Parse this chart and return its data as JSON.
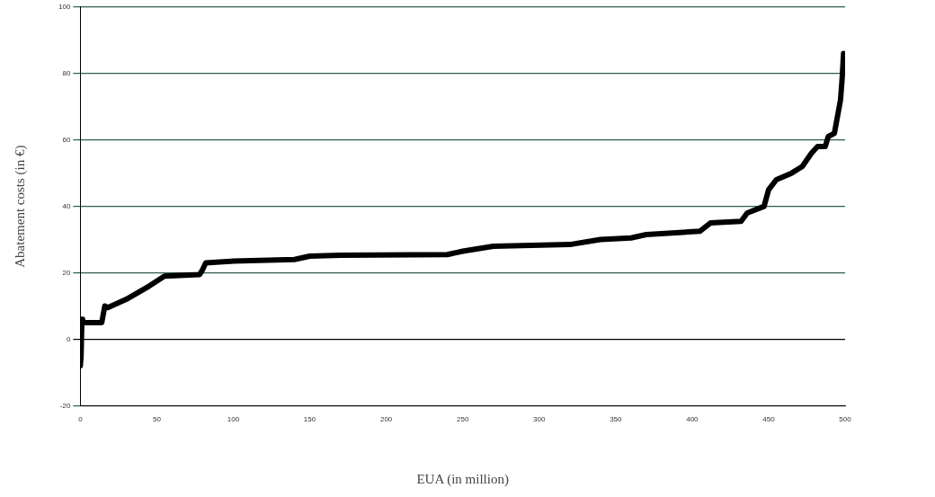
{
  "chart_data": {
    "type": "line",
    "xlabel": "EUA (in million)",
    "ylabel": "Abatement costs (in €)",
    "x": [
      0,
      0.5,
      1,
      1.5,
      14,
      16,
      18,
      30,
      45,
      55,
      78,
      80,
      82,
      100,
      140,
      150,
      170,
      240,
      250,
      270,
      320,
      340,
      360,
      370,
      405,
      412,
      432,
      436,
      447,
      450,
      455,
      465,
      472,
      478,
      482,
      487,
      489,
      493,
      495,
      497,
      498,
      499
    ],
    "series": [
      {
        "color": "#000000",
        "values": [
          -8,
          -5,
          6,
          5,
          5,
          10,
          9.5,
          12,
          16,
          19,
          19.5,
          21,
          23,
          23.5,
          24,
          25,
          25.3,
          25.5,
          26.5,
          28,
          28.5,
          30,
          30.5,
          31.5,
          32.5,
          35,
          35.5,
          38,
          40,
          45,
          48,
          50,
          52,
          56,
          58,
          58,
          61,
          62,
          67,
          72,
          78,
          86
        ]
      }
    ],
    "xlim": [
      0,
      500
    ],
    "xticks": [
      0,
      50,
      100,
      150,
      200,
      250,
      300,
      350,
      400,
      450,
      500
    ],
    "ylim": [
      -20,
      100
    ],
    "yticks": [
      -20,
      0,
      20,
      40,
      60,
      80,
      100
    ],
    "grid": "y",
    "legend": false,
    "marker": "none",
    "line_style": "solid"
  }
}
